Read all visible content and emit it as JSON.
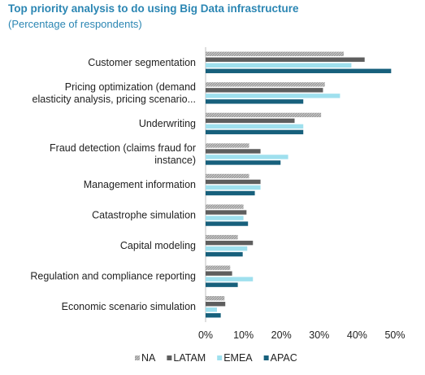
{
  "chart_data": {
    "type": "bar",
    "orientation": "horizontal",
    "title": "Top priority analysis to do using Big Data infrastructure",
    "subtitle": "(Percentage of respondents)",
    "categories": [
      [
        "Customer segmentation"
      ],
      [
        "Pricing optimization (demand",
        "elasticity analysis, pricing scenario..."
      ],
      [
        "Underwriting"
      ],
      [
        "Fraud detection (claims fraud for",
        "instance)"
      ],
      [
        "Management information"
      ],
      [
        "Catastrophe simulation"
      ],
      [
        "Capital modeling"
      ],
      [
        "Regulation and compliance reporting"
      ],
      [
        "Economic scenario simulation"
      ]
    ],
    "series": [
      {
        "name": "NA",
        "color": "#b0b0b0",
        "hatched": true,
        "values": [
          36.5,
          31.5,
          30.5,
          11.5,
          11.5,
          10,
          8.5,
          6.5,
          5
        ]
      },
      {
        "name": "LATAM",
        "color": "#5e5e5e",
        "values": [
          42,
          31,
          23.5,
          14.5,
          14.5,
          10.8,
          12.5,
          7,
          5.2
        ]
      },
      {
        "name": "EMEA",
        "color": "#9fe0ee",
        "values": [
          38.5,
          35.5,
          25.8,
          21.8,
          14.5,
          10,
          11,
          12.5,
          3
        ]
      },
      {
        "name": "APAC",
        "color": "#17607c",
        "values": [
          49,
          25.8,
          25.8,
          19.8,
          13,
          11.2,
          9.8,
          8.5,
          4
        ]
      }
    ],
    "xlim": [
      0,
      50
    ],
    "xticks": [
      "0%",
      "10%",
      "20%",
      "30%",
      "40%",
      "50%"
    ],
    "legend": "bottom",
    "grid": false
  }
}
